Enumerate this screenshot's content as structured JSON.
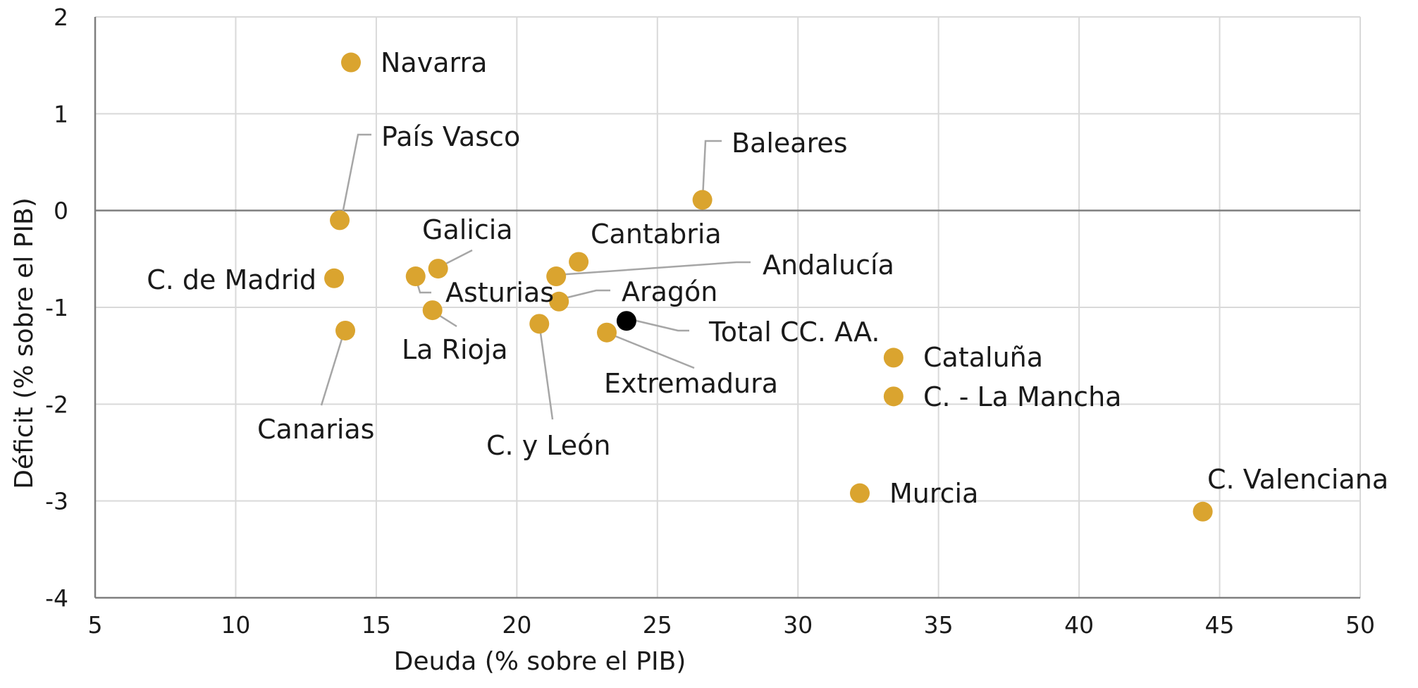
{
  "chart_data": {
    "type": "scatter",
    "title": "",
    "xlabel": "Deuda  (% sobre el PIB)",
    "ylabel": "Déficit  (% sobre el PIB)",
    "xlim": [
      5,
      50
    ],
    "ylim": [
      -4,
      2
    ],
    "x_ticks": [
      5,
      10,
      15,
      20,
      25,
      30,
      35,
      40,
      45,
      50
    ],
    "y_ticks": [
      2,
      1,
      0,
      -1,
      -2,
      -3,
      -4
    ],
    "grid": true,
    "legend": "none",
    "colors": {
      "region": "#DAA42F",
      "total": "#000000",
      "leader": "#A6A6A6"
    },
    "points": [
      {
        "label": "Navarra",
        "x": 14.1,
        "y": 1.53,
        "kind": "region"
      },
      {
        "label": "País Vasco",
        "x": 13.7,
        "y": -0.1,
        "kind": "region"
      },
      {
        "label": "Baleares",
        "x": 26.6,
        "y": 0.11,
        "kind": "region"
      },
      {
        "label": "C. de Madrid",
        "x": 13.5,
        "y": -0.7,
        "kind": "region"
      },
      {
        "label": "Galicia",
        "x": 17.2,
        "y": -0.6,
        "kind": "region"
      },
      {
        "label": "Asturias",
        "x": 16.4,
        "y": -0.68,
        "kind": "region"
      },
      {
        "label": "La Rioja",
        "x": 17.0,
        "y": -1.03,
        "kind": "region"
      },
      {
        "label": "Canarias",
        "x": 13.9,
        "y": -1.24,
        "kind": "region"
      },
      {
        "label": "Cantabria",
        "x": 22.2,
        "y": -0.53,
        "kind": "region"
      },
      {
        "label": "Andalucía",
        "x": 21.4,
        "y": -0.68,
        "kind": "region"
      },
      {
        "label": "Aragón",
        "x": 21.5,
        "y": -0.94,
        "kind": "region"
      },
      {
        "label": "C. y León",
        "x": 20.8,
        "y": -1.17,
        "kind": "region"
      },
      {
        "label": "Extremadura",
        "x": 23.2,
        "y": -1.26,
        "kind": "region"
      },
      {
        "label": "Total CC. AA.",
        "x": 23.9,
        "y": -1.14,
        "kind": "total"
      },
      {
        "label": "Cataluña",
        "x": 33.4,
        "y": -1.52,
        "kind": "region"
      },
      {
        "label": "C. - La Mancha",
        "x": 33.4,
        "y": -1.92,
        "kind": "region"
      },
      {
        "label": "Murcia",
        "x": 32.2,
        "y": -2.92,
        "kind": "region"
      },
      {
        "label": "C. Valenciana",
        "x": 44.4,
        "y": -3.11,
        "kind": "region"
      }
    ]
  }
}
